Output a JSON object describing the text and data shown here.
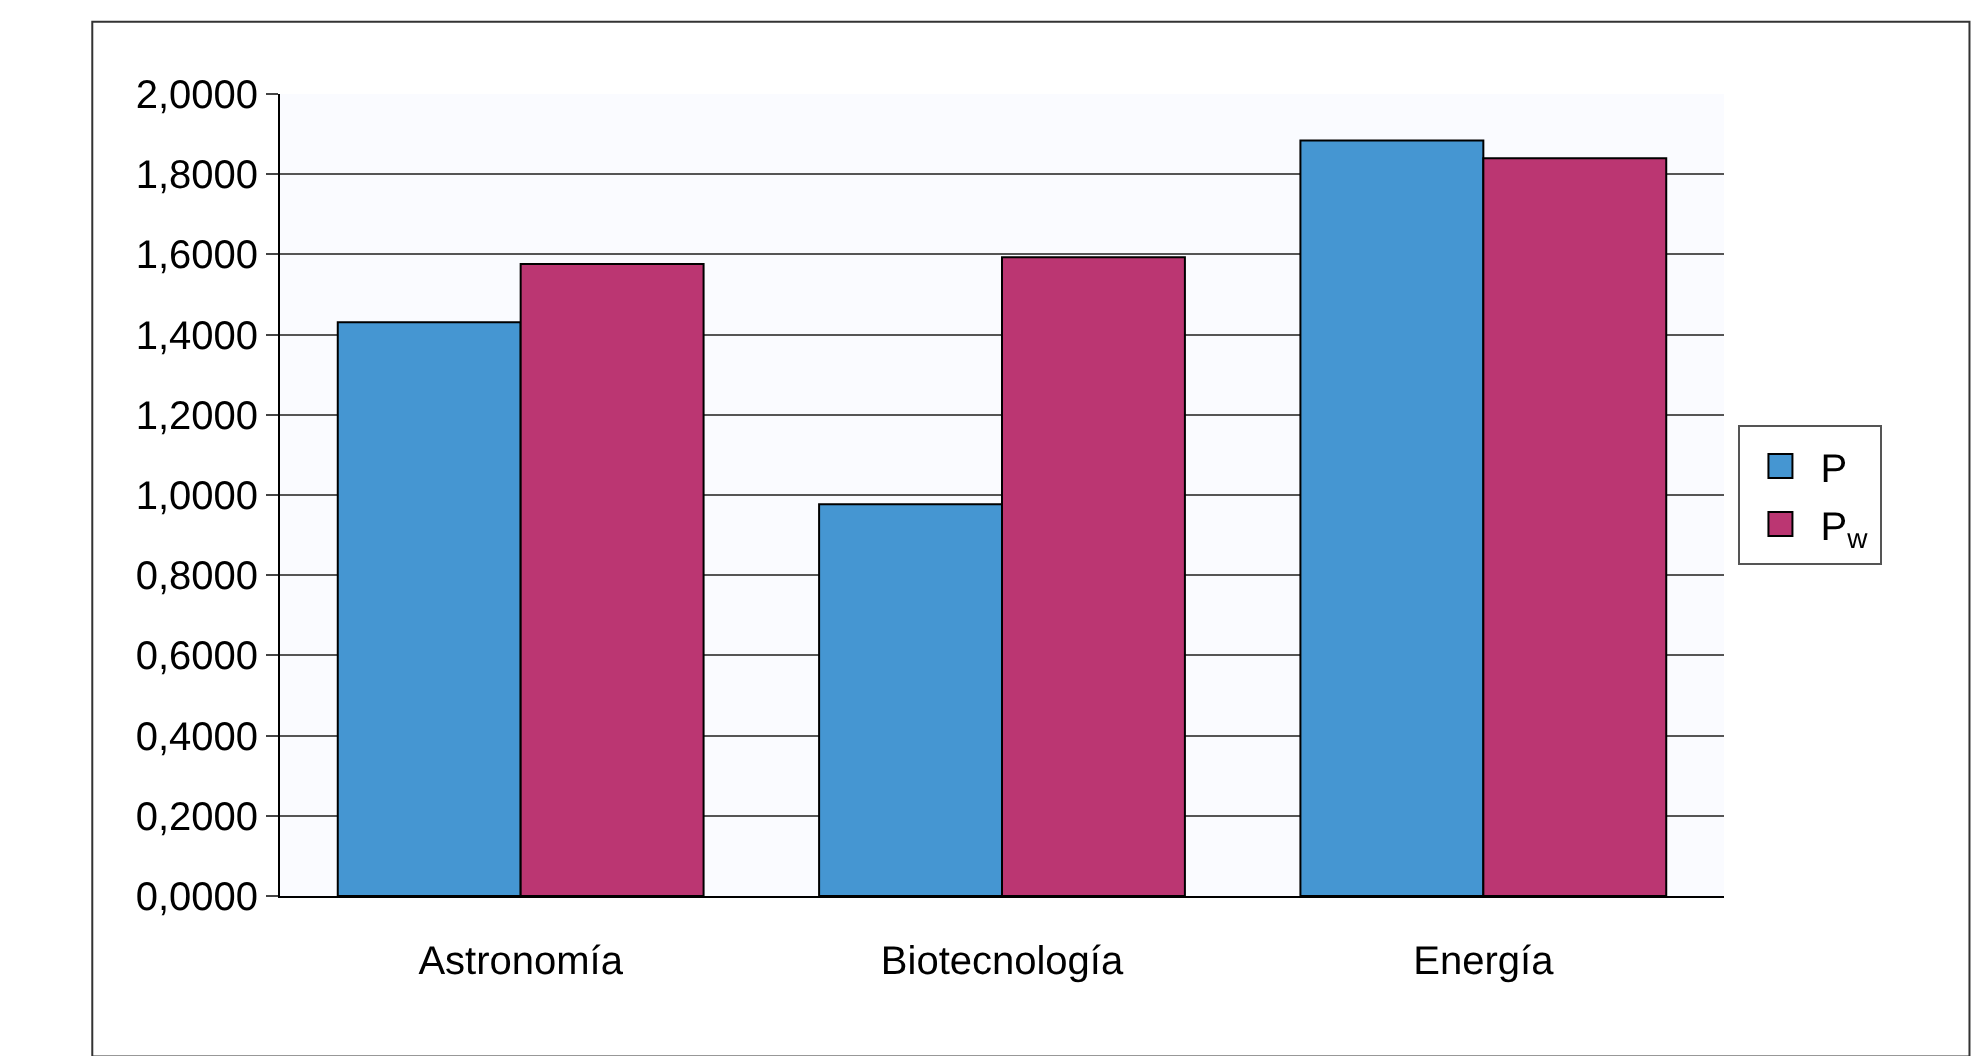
{
  "chart_data": {
    "type": "bar",
    "categories": [
      "Astronomía",
      "Biotecnología",
      "Energía"
    ],
    "series": [
      {
        "name": "P",
        "color": "#4596d2",
        "values": [
          1.431,
          0.977,
          1.884
        ]
      },
      {
        "name": "P$_{w}$",
        "color": "#bb3672",
        "values": [
          1.576,
          1.593,
          1.84
        ]
      }
    ],
    "ylim": [
      0,
      2
    ],
    "yticks": [
      {
        "value": 0,
        "label": "0,0000"
      },
      {
        "value": 0.2,
        "label": "0,2000"
      },
      {
        "value": 0.4,
        "label": "0,4000"
      },
      {
        "value": 0.6,
        "label": "0,6000"
      },
      {
        "value": 0.8,
        "label": "0,8000"
      },
      {
        "value": 1,
        "label": "1,0000"
      },
      {
        "value": 1.2,
        "label": "1,2000"
      },
      {
        "value": 1.4,
        "label": "1,4000"
      },
      {
        "value": 1.6,
        "label": "1,6000"
      },
      {
        "value": 1.8,
        "label": "1,8000"
      },
      {
        "value": 2,
        "label": "2,0000"
      }
    ],
    "grid": "y",
    "legend": "right"
  }
}
